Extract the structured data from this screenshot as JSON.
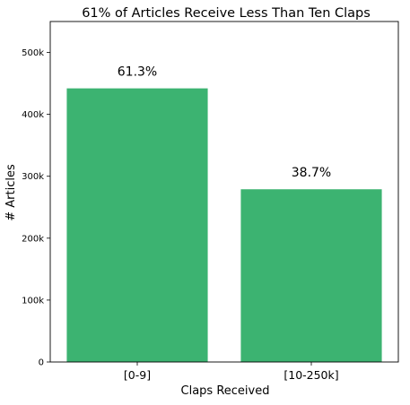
{
  "chart_data": {
    "type": "bar",
    "title": "61% of Articles Receive Less Than Ten Claps",
    "xlabel": "Claps Received",
    "ylabel": "# Articles",
    "categories": [
      "[0-9]",
      "[10-250k]"
    ],
    "values": [
      442000,
      279000
    ],
    "data_labels": [
      "61.3%",
      "38.7%"
    ],
    "ylim": [
      0,
      550000
    ],
    "yticks": [
      0,
      100000,
      200000,
      300000,
      400000,
      500000
    ],
    "ytick_labels": [
      "0",
      "100k",
      "200k",
      "300k",
      "400k",
      "500k"
    ],
    "grid": false,
    "legend": "none",
    "bar_color": "#3cb371"
  }
}
